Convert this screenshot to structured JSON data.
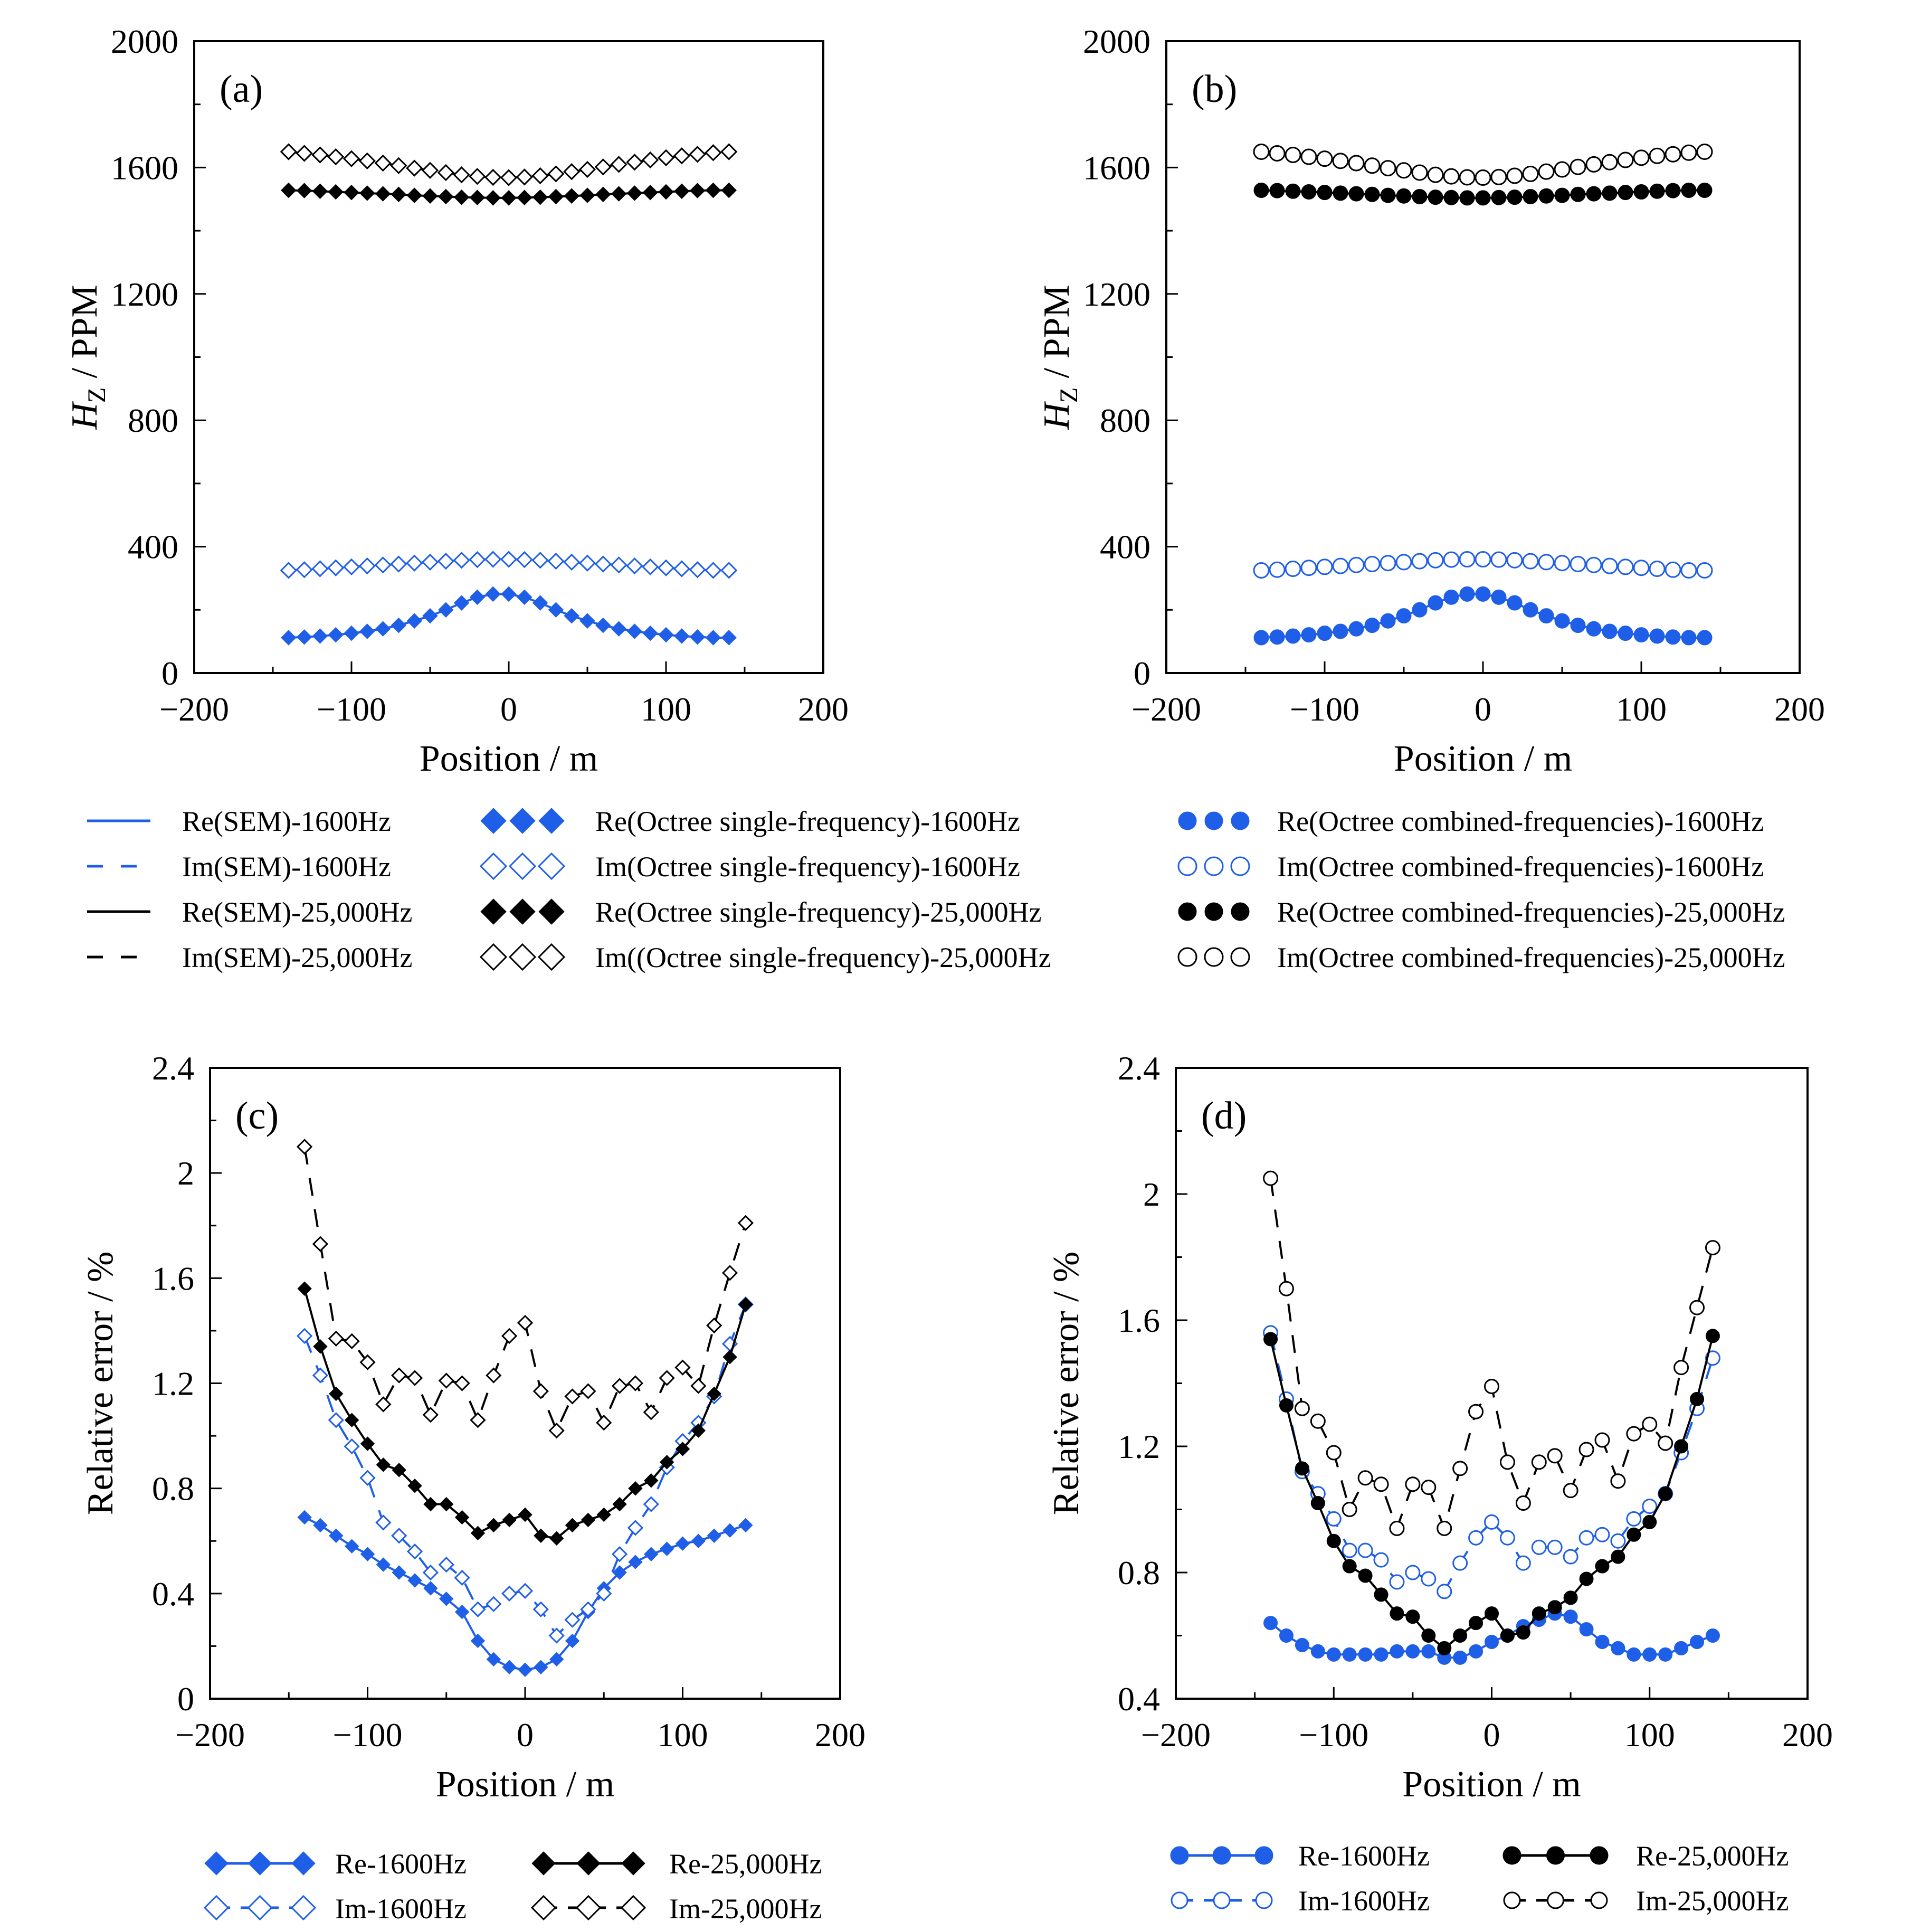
{
  "colors": {
    "blue": "#1f5fe8",
    "black": "#000000"
  },
  "chart_data": [
    {
      "id": "a",
      "type": "line",
      "panel_label": "(a)",
      "xlabel": "Position / m",
      "ylabel_main": "H",
      "ylabel_sub": "Z",
      "ylabel_rest": " / PPM",
      "xlim": [
        -200,
        200
      ],
      "ylim": [
        0,
        2000
      ],
      "xticks": [
        -200,
        -100,
        0,
        100,
        200
      ],
      "xtick_labels": [
        "−200",
        "−100",
        "0",
        "100",
        "200"
      ],
      "yticks": [
        0,
        400,
        800,
        1200,
        1600,
        2000
      ],
      "ytick_labels": [
        "0",
        "400",
        "800",
        "1200",
        "1600",
        "2000"
      ],
      "marker": "diamond",
      "x": [
        -140,
        -130,
        -120,
        -110,
        -100,
        -90,
        -80,
        -70,
        -60,
        -50,
        -40,
        -30,
        -20,
        -10,
        0,
        10,
        20,
        30,
        40,
        50,
        60,
        70,
        80,
        90,
        100,
        110,
        120,
        130,
        140
      ],
      "series": [
        {
          "name": "Re-1600Hz",
          "color": "blue",
          "filled": true,
          "dash": "solid",
          "values": [
            112,
            114,
            117,
            121,
            126,
            132,
            140,
            151,
            165,
            181,
            200,
            222,
            240,
            250,
            250,
            240,
            222,
            200,
            181,
            165,
            151,
            140,
            132,
            126,
            121,
            117,
            114,
            112,
            112
          ]
        },
        {
          "name": "Im-1600Hz",
          "color": "blue",
          "filled": false,
          "dash": "dashed",
          "values": [
            325,
            327,
            330,
            333,
            336,
            339,
            342,
            345,
            348,
            351,
            354,
            357,
            359,
            360,
            360,
            359,
            357,
            354,
            351,
            348,
            345,
            342,
            339,
            336,
            333,
            330,
            327,
            325,
            325
          ]
        },
        {
          "name": "Re-25,000Hz",
          "color": "black",
          "filled": true,
          "dash": "solid",
          "values": [
            1528,
            1527,
            1525,
            1523,
            1521,
            1519,
            1517,
            1515,
            1512,
            1510,
            1508,
            1506,
            1505,
            1504,
            1504,
            1505,
            1506,
            1508,
            1510,
            1512,
            1515,
            1517,
            1519,
            1521,
            1523,
            1525,
            1527,
            1528,
            1528
          ]
        },
        {
          "name": "Im-25,000Hz",
          "color": "black",
          "filled": false,
          "dash": "dashed",
          "values": [
            1650,
            1645,
            1640,
            1634,
            1628,
            1621,
            1614,
            1606,
            1598,
            1591,
            1584,
            1577,
            1572,
            1569,
            1568,
            1570,
            1574,
            1580,
            1587,
            1594,
            1602,
            1610,
            1617,
            1624,
            1631,
            1637,
            1642,
            1647,
            1650
          ]
        }
      ]
    },
    {
      "id": "b",
      "type": "line",
      "panel_label": "(b)",
      "xlabel": "Position / m",
      "ylabel_main": "H",
      "ylabel_sub": "Z",
      "ylabel_rest": " / PPM",
      "xlim": [
        -200,
        200
      ],
      "ylim": [
        0,
        2000
      ],
      "xticks": [
        -200,
        -100,
        0,
        100,
        200
      ],
      "xtick_labels": [
        "−200",
        "−100",
        "0",
        "100",
        "200"
      ],
      "yticks": [
        0,
        400,
        800,
        1200,
        1600,
        2000
      ],
      "ytick_labels": [
        "0",
        "400",
        "800",
        "1200",
        "1600",
        "2000"
      ],
      "marker": "circle",
      "x": [
        -140,
        -130,
        -120,
        -110,
        -100,
        -90,
        -80,
        -70,
        -60,
        -50,
        -40,
        -30,
        -20,
        -10,
        0,
        10,
        20,
        30,
        40,
        50,
        60,
        70,
        80,
        90,
        100,
        110,
        120,
        130,
        140
      ],
      "series": [
        {
          "name": "Re-1600Hz",
          "color": "blue",
          "filled": true,
          "dash": "solid",
          "values": [
            112,
            114,
            117,
            121,
            126,
            132,
            140,
            151,
            165,
            181,
            200,
            222,
            240,
            250,
            250,
            240,
            222,
            200,
            181,
            165,
            151,
            140,
            132,
            126,
            121,
            117,
            114,
            112,
            112
          ]
        },
        {
          "name": "Im-1600Hz",
          "color": "blue",
          "filled": false,
          "dash": "dashed",
          "values": [
            325,
            327,
            330,
            333,
            336,
            339,
            342,
            345,
            348,
            351,
            354,
            357,
            359,
            360,
            360,
            359,
            357,
            354,
            351,
            348,
            345,
            342,
            339,
            336,
            333,
            330,
            327,
            325,
            325
          ]
        },
        {
          "name": "Re-25,000Hz",
          "color": "black",
          "filled": true,
          "dash": "solid",
          "values": [
            1528,
            1527,
            1525,
            1523,
            1521,
            1519,
            1517,
            1515,
            1512,
            1510,
            1508,
            1506,
            1505,
            1504,
            1504,
            1505,
            1506,
            1508,
            1510,
            1512,
            1515,
            1517,
            1519,
            1521,
            1523,
            1525,
            1527,
            1528,
            1528
          ]
        },
        {
          "name": "Im-25,000Hz",
          "color": "black",
          "filled": false,
          "dash": "dashed",
          "values": [
            1650,
            1645,
            1640,
            1634,
            1628,
            1621,
            1614,
            1606,
            1598,
            1591,
            1584,
            1577,
            1572,
            1569,
            1568,
            1570,
            1574,
            1580,
            1587,
            1594,
            1602,
            1610,
            1617,
            1624,
            1631,
            1637,
            1642,
            1647,
            1650
          ]
        }
      ]
    },
    {
      "id": "c",
      "type": "line",
      "panel_label": "(c)",
      "xlabel": "Position / m",
      "ylabel_main": "Relative error / %",
      "ylabel_sub": "",
      "ylabel_rest": "",
      "xlim": [
        -200,
        200
      ],
      "ylim": [
        0,
        2.4
      ],
      "xticks": [
        -200,
        -100,
        0,
        100,
        200
      ],
      "xtick_labels": [
        "−200",
        "−100",
        "0",
        "100",
        "200"
      ],
      "yticks": [
        0,
        0.4,
        0.8,
        1.2,
        1.6,
        2,
        2.4
      ],
      "ytick_labels": [
        "0",
        "0.4",
        "0.8",
        "1.2",
        "1.6",
        "2",
        "2.4"
      ],
      "marker": "diamond",
      "x": [
        -140,
        -130,
        -120,
        -110,
        -100,
        -90,
        -80,
        -70,
        -60,
        -50,
        -40,
        -30,
        -20,
        -10,
        0,
        10,
        20,
        30,
        40,
        50,
        60,
        70,
        80,
        90,
        100,
        110,
        120,
        130,
        140
      ],
      "series": [
        {
          "name": "Re-1600Hz",
          "color": "blue",
          "filled": true,
          "dash": "solid",
          "values": [
            0.69,
            0.66,
            0.62,
            0.58,
            0.55,
            0.51,
            0.48,
            0.45,
            0.42,
            0.38,
            0.33,
            0.22,
            0.15,
            0.12,
            0.11,
            0.12,
            0.15,
            0.22,
            0.33,
            0.42,
            0.48,
            0.52,
            0.55,
            0.57,
            0.59,
            0.6,
            0.62,
            0.64,
            0.66
          ]
        },
        {
          "name": "Im-1600Hz",
          "color": "blue",
          "filled": false,
          "dash": "dashed",
          "values": [
            1.38,
            1.23,
            1.06,
            0.96,
            0.84,
            0.67,
            0.62,
            0.56,
            0.48,
            0.51,
            0.46,
            0.34,
            0.36,
            0.4,
            0.41,
            0.34,
            0.24,
            0.3,
            0.34,
            0.4,
            0.55,
            0.65,
            0.74,
            0.88,
            0.98,
            1.05,
            1.15,
            1.35,
            1.5
          ]
        },
        {
          "name": "Re-25,000Hz",
          "color": "black",
          "filled": true,
          "dash": "solid",
          "values": [
            1.56,
            1.34,
            1.16,
            1.06,
            0.97,
            0.89,
            0.87,
            0.81,
            0.74,
            0.74,
            0.69,
            0.63,
            0.66,
            0.68,
            0.7,
            0.62,
            0.61,
            0.66,
            0.68,
            0.7,
            0.74,
            0.8,
            0.83,
            0.9,
            0.95,
            1.02,
            1.16,
            1.3,
            1.5
          ]
        },
        {
          "name": "Im-25,000Hz",
          "color": "black",
          "filled": false,
          "dash": "dashed",
          "values": [
            2.1,
            1.73,
            1.37,
            1.36,
            1.28,
            1.12,
            1.23,
            1.22,
            1.08,
            1.21,
            1.2,
            1.06,
            1.23,
            1.38,
            1.43,
            1.17,
            1.02,
            1.15,
            1.17,
            1.05,
            1.19,
            1.2,
            1.09,
            1.22,
            1.26,
            1.19,
            1.42,
            1.62,
            1.81
          ]
        }
      ]
    },
    {
      "id": "d",
      "type": "line",
      "panel_label": "(d)",
      "xlabel": "Position / m",
      "ylabel_main": "Relative error / %",
      "ylabel_sub": "",
      "ylabel_rest": "",
      "xlim": [
        -200,
        200
      ],
      "ylim": [
        0.4,
        2.4
      ],
      "xticks": [
        -200,
        -100,
        0,
        100,
        200
      ],
      "xtick_labels": [
        "−200",
        "−100",
        "0",
        "100",
        "200"
      ],
      "yticks": [
        0.4,
        0.8,
        1.2,
        1.6,
        2,
        2.4
      ],
      "ytick_labels": [
        "0.4",
        "0.8",
        "1.2",
        "1.6",
        "2",
        "2.4"
      ],
      "marker": "circle",
      "x": [
        -140,
        -130,
        -120,
        -110,
        -100,
        -90,
        -80,
        -70,
        -60,
        -50,
        -40,
        -30,
        -20,
        -10,
        0,
        10,
        20,
        30,
        40,
        50,
        60,
        70,
        80,
        90,
        100,
        110,
        120,
        130,
        140
      ],
      "series": [
        {
          "name": "Re-1600Hz",
          "color": "blue",
          "filled": true,
          "dash": "solid",
          "values": [
            0.64,
            0.6,
            0.57,
            0.55,
            0.54,
            0.54,
            0.54,
            0.54,
            0.55,
            0.55,
            0.55,
            0.53,
            0.53,
            0.55,
            0.58,
            0.6,
            0.63,
            0.65,
            0.67,
            0.66,
            0.62,
            0.58,
            0.56,
            0.54,
            0.54,
            0.54,
            0.56,
            0.58,
            0.6
          ]
        },
        {
          "name": "Im-1600Hz",
          "color": "blue",
          "filled": false,
          "dash": "dashed",
          "values": [
            1.56,
            1.35,
            1.12,
            1.05,
            0.97,
            0.87,
            0.87,
            0.84,
            0.77,
            0.8,
            0.78,
            0.74,
            0.83,
            0.91,
            0.96,
            0.91,
            0.83,
            0.88,
            0.88,
            0.85,
            0.91,
            0.92,
            0.9,
            0.97,
            1.01,
            1.05,
            1.18,
            1.32,
            1.48
          ]
        },
        {
          "name": "Re-25,000Hz",
          "color": "black",
          "filled": true,
          "dash": "solid",
          "values": [
            1.54,
            1.33,
            1.13,
            1.02,
            0.9,
            0.82,
            0.79,
            0.73,
            0.67,
            0.66,
            0.6,
            0.56,
            0.6,
            0.64,
            0.67,
            0.6,
            0.61,
            0.67,
            0.69,
            0.72,
            0.78,
            0.82,
            0.85,
            0.92,
            0.96,
            1.05,
            1.2,
            1.35,
            1.55
          ]
        },
        {
          "name": "Im-25,000Hz",
          "color": "black",
          "filled": false,
          "dash": "dashed",
          "values": [
            2.05,
            1.7,
            1.32,
            1.28,
            1.18,
            1.0,
            1.1,
            1.08,
            0.94,
            1.08,
            1.07,
            0.94,
            1.13,
            1.31,
            1.39,
            1.15,
            1.02,
            1.15,
            1.17,
            1.06,
            1.19,
            1.22,
            1.09,
            1.24,
            1.27,
            1.21,
            1.45,
            1.64,
            1.83
          ]
        }
      ]
    }
  ],
  "legend_top": {
    "col1": [
      "Re(SEM)-1600Hz",
      "Im(SEM)-1600Hz",
      "Re(SEM)-25,000Hz",
      "Im(SEM)-25,000Hz"
    ],
    "col2": [
      "Re(Octree single-frequency)-1600Hz",
      "Im(Octree single-frequency)-1600Hz",
      "Re(Octree single-frequency)-25,000Hz",
      "Im((Octree single-frequency)-25,000Hz"
    ],
    "col3": [
      "Re(Octree combined-frequencies)-1600Hz",
      "Im(Octree combined-frequencies)-1600Hz",
      "Re(Octree combined-frequencies)-25,000Hz",
      "Im(Octree combined-frequencies)-25,000Hz"
    ]
  },
  "legend_c": {
    "re1600": "Re-1600Hz",
    "im1600": "Im-1600Hz",
    "re25000": "Re-25,000Hz",
    "im25000": "Im-25,000Hz"
  },
  "legend_d": {
    "re1600": "Re-1600Hz",
    "im1600": "Im-1600Hz",
    "re25000": "Re-25,000Hz",
    "im25000": "Im-25,000Hz"
  }
}
